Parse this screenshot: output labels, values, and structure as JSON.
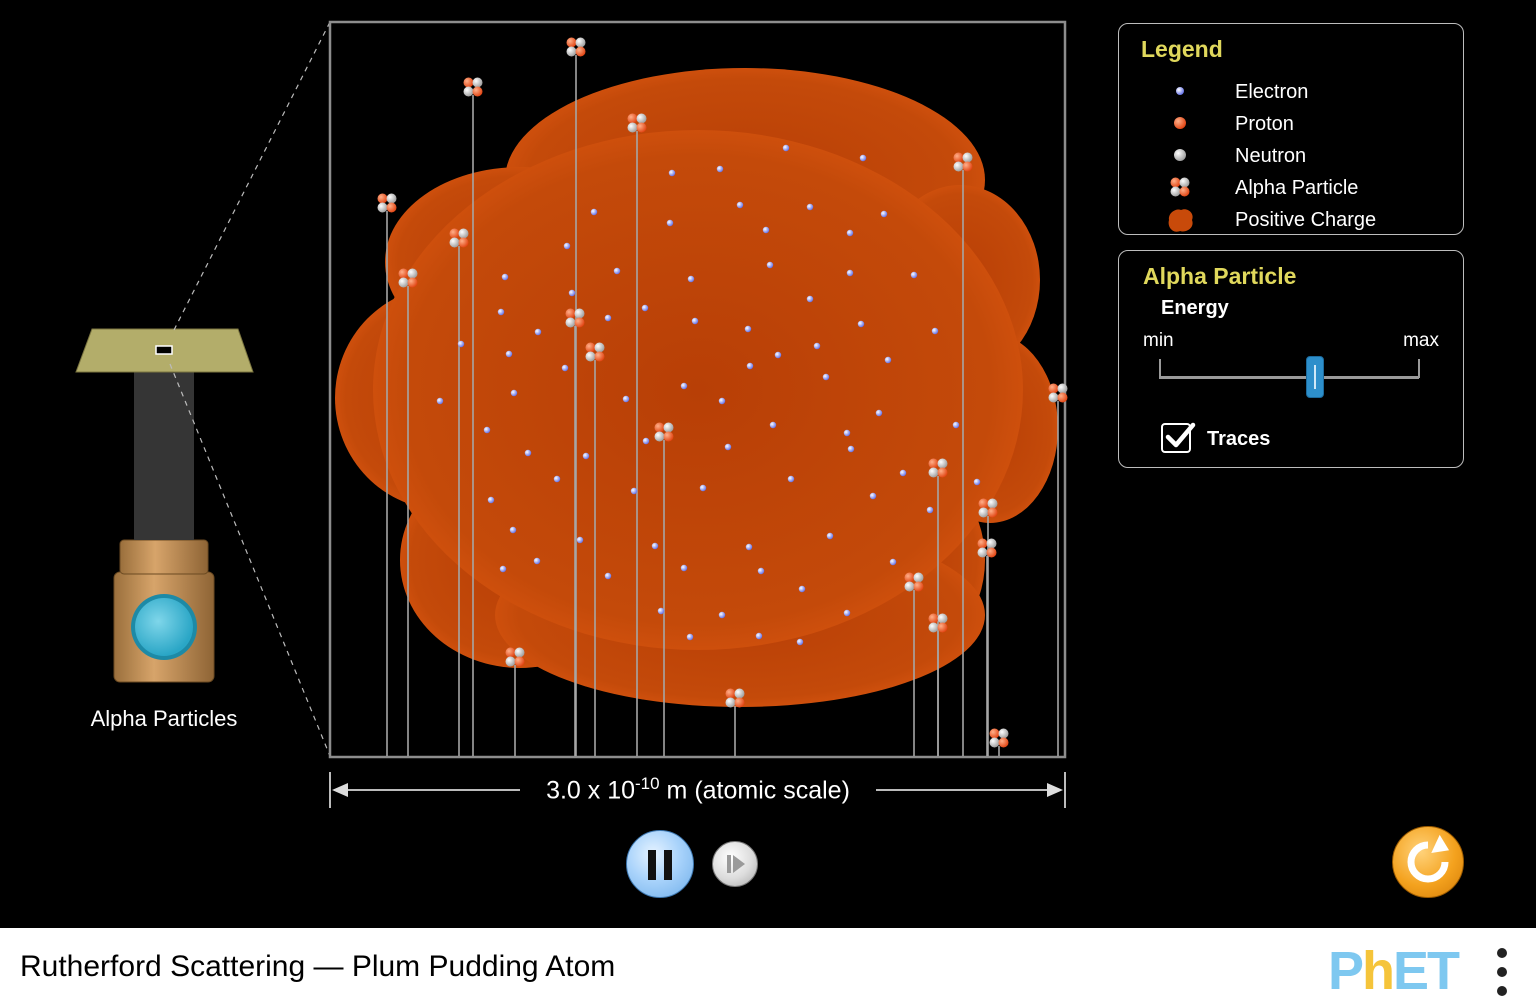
{
  "navbar": {
    "title": "Rutherford Scattering — Plum Pudding Atom"
  },
  "gun": {
    "label": "Alpha Particles"
  },
  "scale": {
    "base": "3.0 x 10",
    "exponent": "-10",
    "unit": "m (atomic scale)"
  },
  "legend": {
    "title": "Legend",
    "items": [
      {
        "label": "Electron",
        "icon": "electron-icon"
      },
      {
        "label": "Proton",
        "icon": "proton-icon"
      },
      {
        "label": "Neutron",
        "icon": "neutron-icon"
      },
      {
        "label": "Alpha Particle",
        "icon": "alpha-particle-icon"
      },
      {
        "label": "Positive Charge",
        "icon": "positive-charge-icon"
      }
    ]
  },
  "alpha_panel": {
    "title": "Alpha Particle",
    "energy_label": "Energy",
    "min_label": "min",
    "max_label": "max",
    "energy_level": 0.6,
    "traces_label": "Traces",
    "traces_checked": true
  },
  "colors": {
    "pudding": "#c84a0a",
    "electron": "#8e9cff",
    "proton": "#e8541c",
    "neutron": "#d8d8d8",
    "legend_title": "#e0d85c",
    "slider_thumb": "#2d8fcb",
    "reset_button": "#f4a21e"
  },
  "brand": {
    "logo_text_p": "P",
    "logo_text_h": "h",
    "logo_text_et": "ET"
  }
}
